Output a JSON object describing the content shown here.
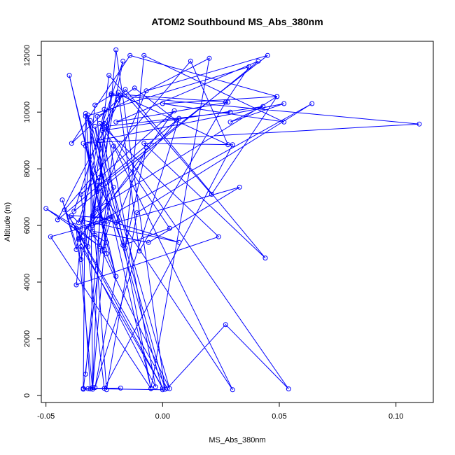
{
  "chart_data": {
    "type": "line",
    "title": "ATOM2 Southbound MS_Abs_380nm",
    "xlabel": "MS_Abs_380nm",
    "ylabel": "Altitude (m)",
    "xlim": [
      -0.052,
      0.116
    ],
    "ylim": [
      -250,
      12500
    ],
    "x_ticks": [
      -0.05,
      0.0,
      0.05,
      0.1
    ],
    "x_tick_labels": [
      "-0.05",
      "0.00",
      "0.05",
      "0.10"
    ],
    "y_ticks": [
      0,
      2000,
      4000,
      6000,
      8000,
      10000,
      12000
    ],
    "y_tick_labels": [
      "0",
      "2000",
      "4000",
      "6000",
      "8000",
      "10000",
      "12000"
    ],
    "grid": false,
    "legend": "none",
    "marker": "open-circle",
    "color": "#0000ff",
    "series": [
      {
        "x": [
          -0.033,
          -0.02,
          0.001,
          -0.031,
          -0.03,
          -0.025,
          -0.037,
          -0.043,
          -0.035,
          -0.028,
          -0.04,
          -0.02,
          -0.024,
          -0.032,
          -0.005,
          0.02,
          -0.028,
          -0.026,
          0.045,
          -0.007,
          -0.03,
          -0.027,
          -0.022,
          0.028,
          -0.02,
          0.041,
          -0.038,
          -0.017,
          -0.03,
          0.007,
          -0.035,
          -0.025,
          -0.05,
          -0.038,
          -0.027,
          -0.021,
          -0.036,
          -0.029,
          -0.024,
          -0.033,
          -0.017,
          0.003,
          -0.027,
          0.024,
          -0.037,
          -0.029,
          -0.022,
          0.11,
          -0.034,
          0.052,
          0.029,
          0.043,
          -0.026,
          -0.005,
          -0.048,
          -0.024,
          -0.03,
          -0.037,
          -0.022,
          -0.026,
          0.003,
          -0.029,
          -0.023,
          -0.039,
          -0.036,
          -0.019,
          -0.01,
          0.027,
          0.037,
          -0.033,
          -0.034,
          -0.031,
          -0.035,
          0.0,
          -0.04,
          0.002,
          0.027,
          0.054,
          -0.025,
          -0.018,
          0.028,
          0.012,
          -0.042,
          -0.032,
          -0.023,
          0.021,
          0.049,
          -0.028,
          -0.02,
          -0.029,
          0.007,
          -0.045,
          -0.016,
          0.044,
          -0.008,
          0.03,
          -0.025,
          -0.035,
          0.005,
          -0.03,
          0.064,
          -0.011,
          -0.024,
          -0.033,
          0.0,
          -0.032,
          -0.018,
          -0.034,
          -0.021,
          0.03,
          -0.028,
          -0.03,
          -0.006,
          0.033,
          -0.02,
          -0.007,
          -0.016,
          -0.008,
          0.052,
          0.0,
          0.049,
          -0.014,
          -0.039,
          -0.019,
          -0.012,
          0.006,
          -0.036,
          -0.003,
          -0.024,
          0.029
        ],
        "y": [
          750,
          12200,
          220,
          9700,
          280,
          10100,
          5150,
          6900,
          4800,
          7200,
          11300,
          4200,
          5000,
          9900,
          250,
          11900,
          9850,
          7450,
          12000,
          10750,
          6250,
          7700,
          10650,
          10350,
          9650,
          11800,
          6500,
          11800,
          6350,
          5400,
          6200,
          5150,
          6600,
          6000,
          5250,
          7350,
          5500,
          5650,
          5400,
          8800,
          5300,
          5900,
          9600,
          5600,
          3900,
          10250,
          10600,
          9580,
          8900,
          10300,
          9650,
          10200,
          9350,
          240,
          5600,
          6150,
          220,
          5900,
          6300,
          5100,
          240,
          9500,
          6250,
          6350,
          6100,
          10700,
          5100,
          10350,
          11600,
          9850,
          250,
          230,
          5250,
          260,
          6300,
          250,
          2500,
          230,
          9600,
          10600,
          8850,
          11800,
          6550,
          5250,
          11300,
          7100,
          10550,
          6600,
          4200,
          280,
          9780,
          6200,
          10800,
          4850,
          8900,
          8850,
          250,
          7100,
          10050,
          6000,
          10300,
          6450,
          200,
          9950,
          200,
          240,
          260,
          220,
          8800,
          200,
          7400,
          5800,
          5400,
          7350,
          6100,
          8750,
          5200,
          12000,
          9650,
          10300,
          10550,
          12000,
          8900,
          10450,
          10850,
          9700,
          5550,
          300,
          9500,
          10000
        ]
      }
    ]
  }
}
